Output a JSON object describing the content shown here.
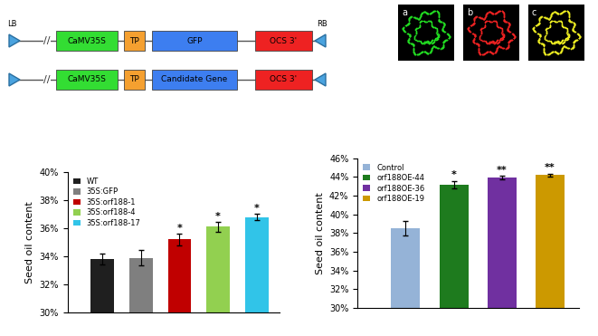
{
  "chart_data": [
    {
      "type": "bar",
      "y_label": "Seed oil content",
      "categories": [
        "WT",
        "35S:GFP",
        "35S:orf188-1",
        "35S:orf188-4",
        "35S:orf188-17"
      ],
      "values": [
        33.8,
        33.9,
        35.2,
        36.1,
        36.8
      ],
      "errors": [
        0.4,
        0.55,
        0.4,
        0.35,
        0.2
      ],
      "colors": [
        "#1f1f1f",
        "#7f7f7f",
        "#c00000",
        "#92d050",
        "#31c4e8"
      ],
      "annotations": [
        null,
        null,
        "*",
        "*",
        "*"
      ],
      "ylim": [
        30,
        40
      ],
      "yticks": [
        {
          "value": 30,
          "label": "30%"
        },
        {
          "value": 32,
          "label": "32%"
        },
        {
          "value": 34,
          "label": "34%"
        },
        {
          "value": 36,
          "label": "36%"
        },
        {
          "value": 38,
          "label": "38%"
        },
        {
          "value": 40,
          "label": "40%"
        }
      ],
      "legend": "upper left",
      "tick_labels": "y",
      "grid": false
    },
    {
      "type": "bar",
      "y_label": "Seed oil content",
      "categories": [
        "Control",
        "orf188OE-44",
        "orf188OE-36",
        "orf188OE-19"
      ],
      "values": [
        38.5,
        43.2,
        43.9,
        44.2
      ],
      "errors": [
        0.8,
        0.4,
        0.2,
        0.15
      ],
      "colors": [
        "#95b3d7",
        "#1e7b1e",
        "#7030a0",
        "#cc9900"
      ],
      "annotations": [
        null,
        "*",
        "**",
        "**"
      ],
      "ylim": [
        30,
        46
      ],
      "yticks": [
        {
          "value": 30,
          "label": "30%"
        },
        {
          "value": 32,
          "label": "32%"
        },
        {
          "value": 34,
          "label": "34%"
        },
        {
          "value": 36,
          "label": "36%"
        },
        {
          "value": 38,
          "label": "38%"
        },
        {
          "value": 40,
          "label": "40%"
        },
        {
          "value": 42,
          "label": "42%"
        },
        {
          "value": 44,
          "label": "44%"
        },
        {
          "value": 46,
          "label": "46%"
        }
      ],
      "legend": "upper left",
      "tick_labels": "y",
      "grid": false
    }
  ],
  "diagram": {
    "border_left": "LB",
    "border_right": "RB",
    "break": "//",
    "constructs": [
      [
        "CaMV35S",
        "TP",
        "GFP",
        "OCS 3'"
      ],
      [
        "CaMV35S",
        "TP",
        "Candidate Gene",
        "OCS 3'"
      ]
    ]
  },
  "micrographs": [
    "a",
    "b",
    "c"
  ]
}
